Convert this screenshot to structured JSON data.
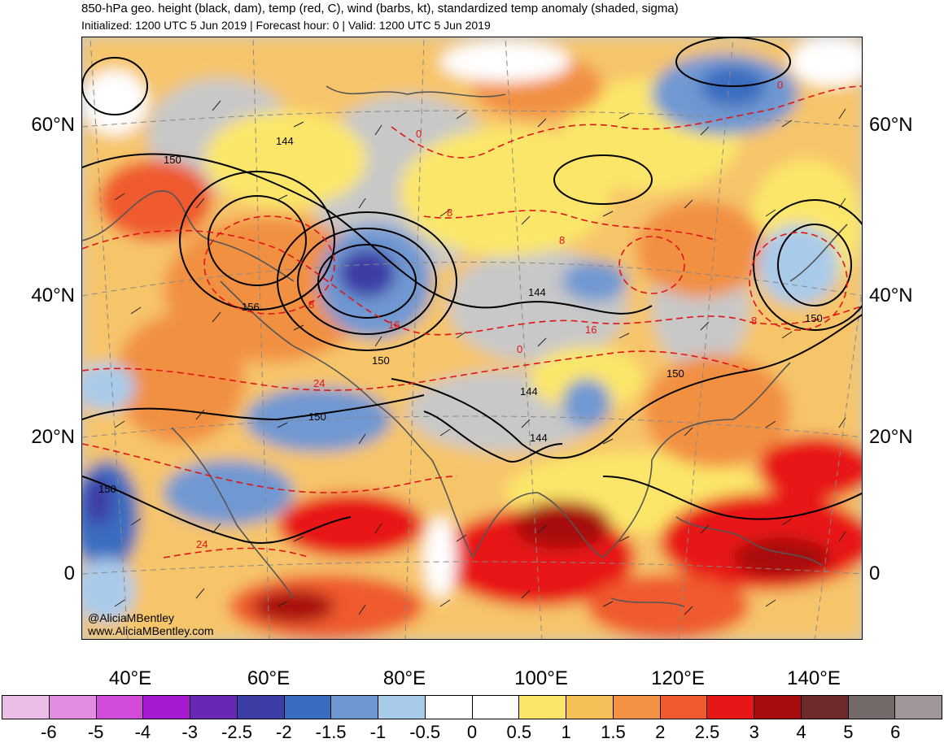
{
  "header": {
    "title": "850-hPa geo. height (black, dam), temp (red, C), wind (barbs, kt), standardized temp anomaly (shaded, sigma)",
    "subtitle": "Initialized: 1200 UTC 5 Jun 2019 | Forecast hour: 0 | Valid: 1200 UTC 5 Jun 2019"
  },
  "map": {
    "lat_labels": [
      "60°N",
      "40°N",
      "20°N",
      "0"
    ],
    "lon_labels": [
      "40°E",
      "60°E",
      "80°E",
      "100°E",
      "120°E",
      "140°E"
    ],
    "height_labels": [
      "150",
      "144",
      "156",
      "150",
      "150",
      "144",
      "150",
      "144",
      "144",
      "150",
      "150"
    ],
    "temp_labels": [
      "0",
      "0",
      "8",
      "8",
      "8",
      "16",
      "24",
      "24",
      "16",
      "8",
      "0"
    ],
    "credit_handle": "@AliciaMBentley",
    "credit_url": "www.AliciaMBentley.com"
  },
  "colorbar": {
    "labels": [
      "-6",
      "-5",
      "-4",
      "-3",
      "-2.5",
      "-2",
      "-1.5",
      "-1",
      "-0.5",
      "0",
      "0.5",
      "1",
      "1.5",
      "2",
      "2.5",
      "3",
      "4",
      "5",
      "6"
    ],
    "colors": [
      "#ecbde6",
      "#e28ce2",
      "#d24cd9",
      "#a71ad1",
      "#6a26b4",
      "#3c3ea6",
      "#3a6cc0",
      "#6f98d2",
      "#a9cbea",
      "#ffffff",
      "#ffffff",
      "#fce66a",
      "#f5c057",
      "#f29043",
      "#ef5a2e",
      "#e81717",
      "#a80d0d",
      "#6e2a2a",
      "#756a6a",
      "#a09898"
    ]
  }
}
